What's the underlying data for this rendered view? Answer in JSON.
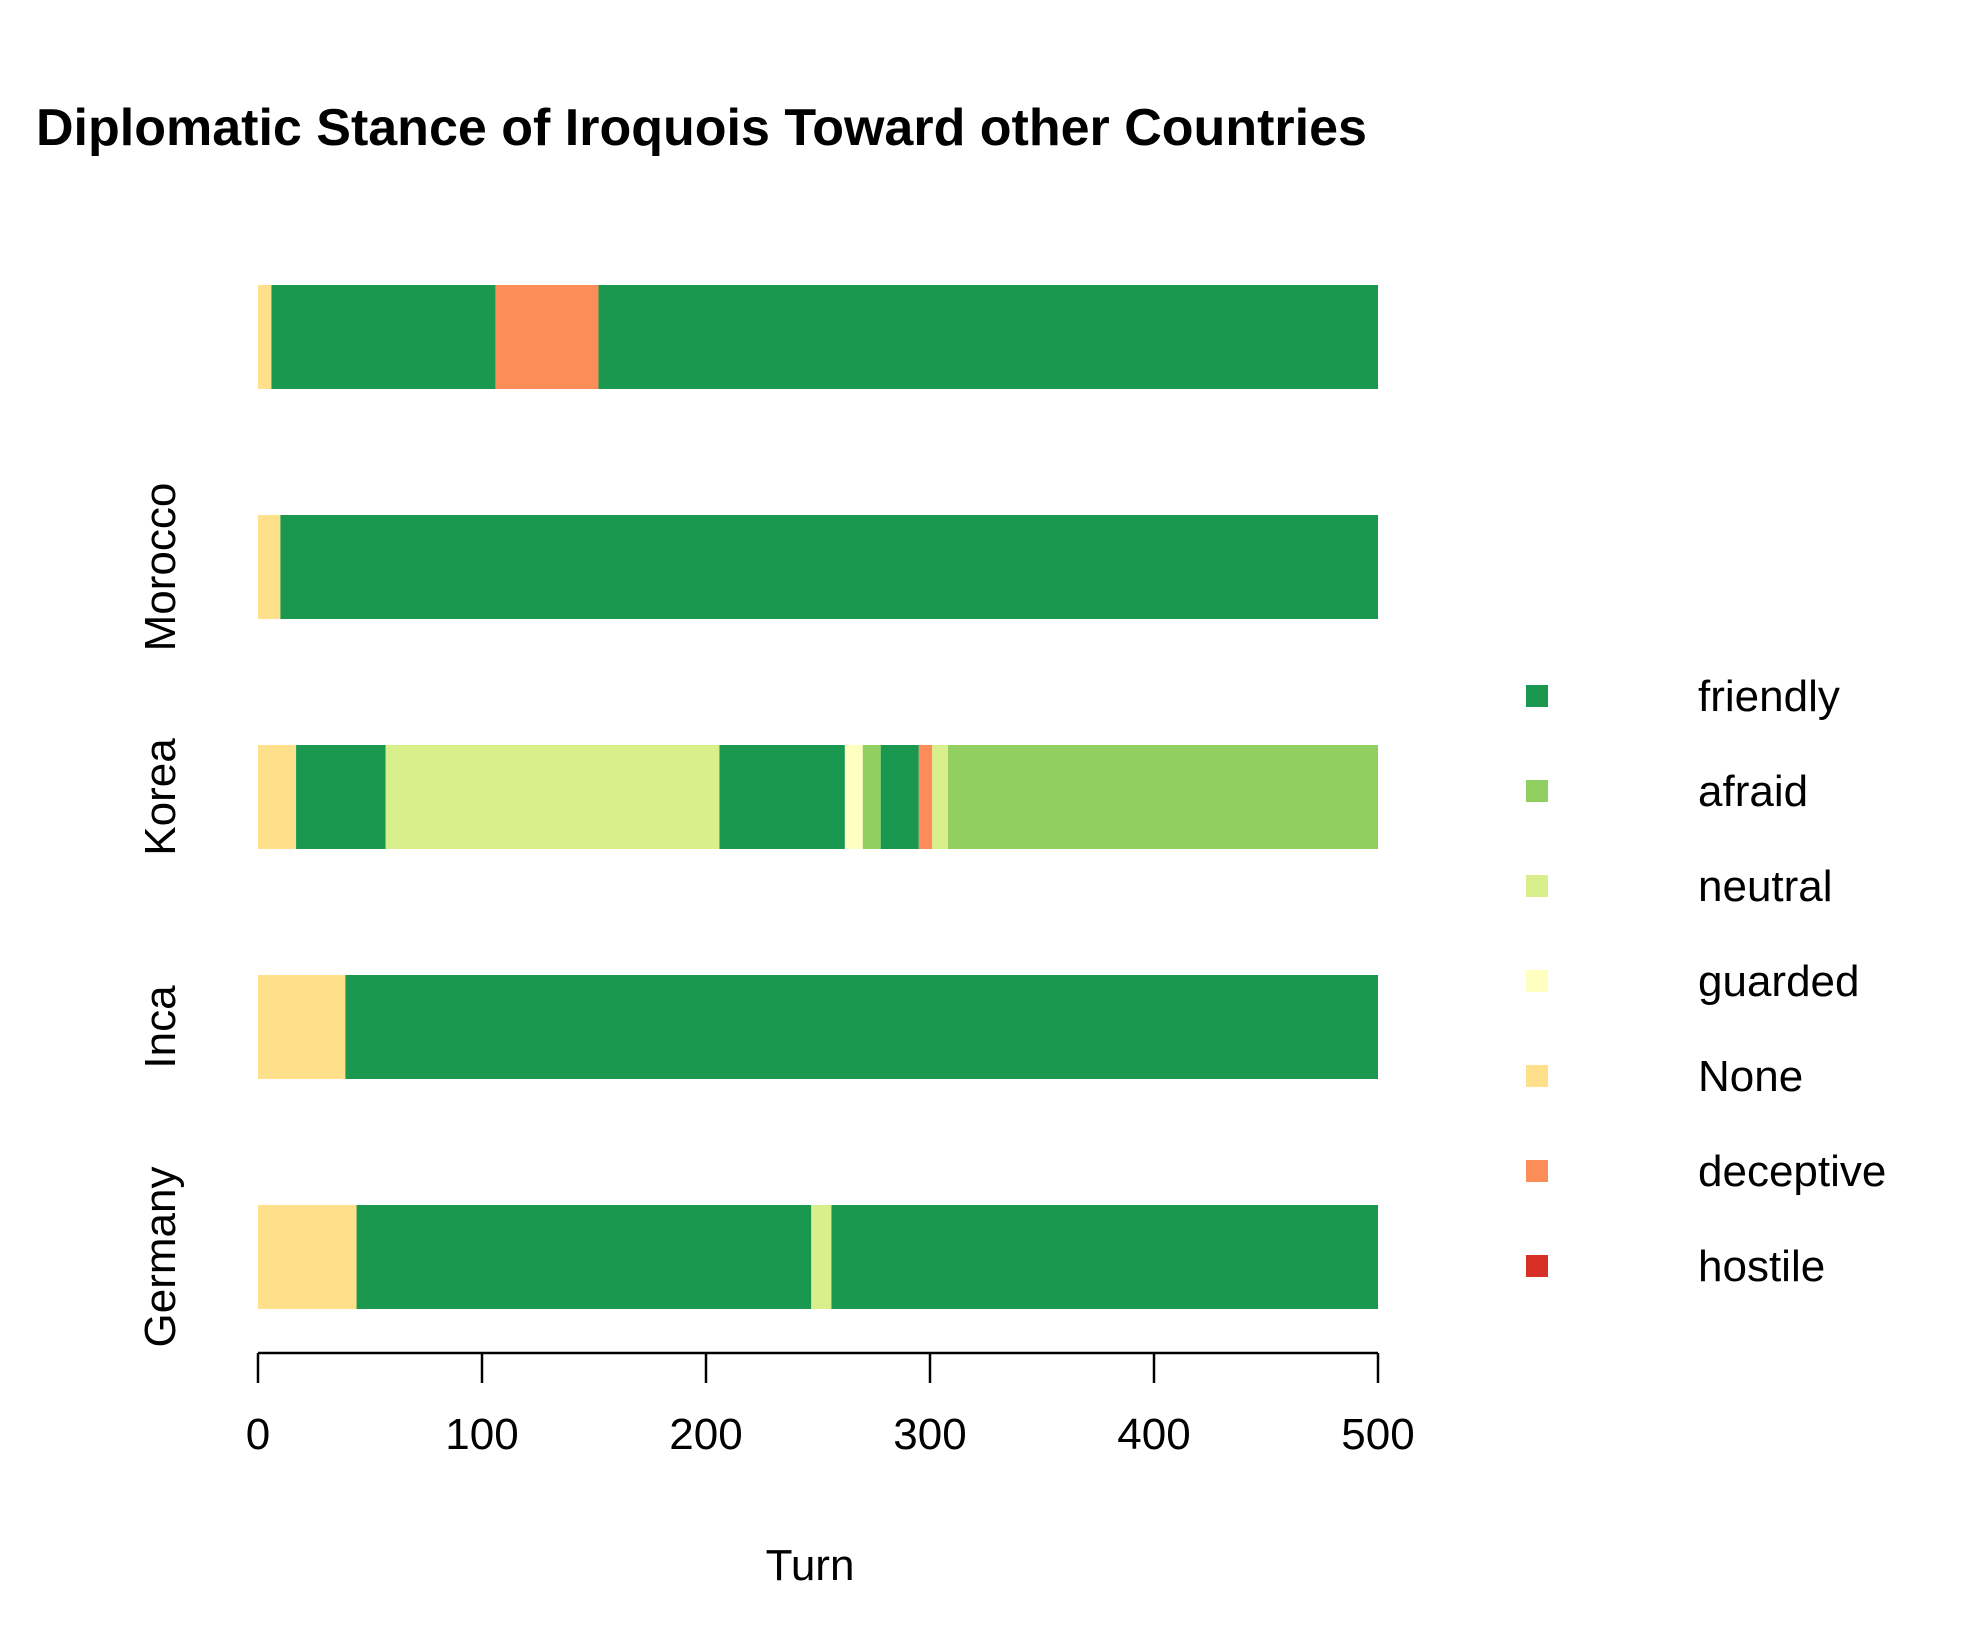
{
  "chart_data": {
    "type": "bar",
    "orientation": "horizontal",
    "stacked": true,
    "title": "Diplomatic Stance of Iroquois Toward other Countries",
    "xlabel": "Turn",
    "ylabel": "",
    "xlim": [
      0,
      500
    ],
    "x_ticks": [
      "0",
      "100",
      "200",
      "300",
      "400",
      "500"
    ],
    "grid": false,
    "legend_position": "right",
    "categories": [
      "Germany",
      "Inca",
      "Korea",
      "Morocco",
      ""
    ],
    "stance_colors": {
      "friendly": "#1a9850",
      "afraid": "#91cf60",
      "neutral": "#d9ef8b",
      "guarded": "#ffffbf",
      "None": "#fee08b",
      "deceptive": "#fc8d59",
      "hostile": "#d73027"
    },
    "legend": [
      "friendly",
      "afraid",
      "neutral",
      "guarded",
      "None",
      "deceptive",
      "hostile"
    ],
    "bars": [
      {
        "category": "Germany",
        "segments": [
          {
            "stance": "None",
            "start": 0,
            "end": 44
          },
          {
            "stance": "friendly",
            "start": 44,
            "end": 247
          },
          {
            "stance": "neutral",
            "start": 247,
            "end": 256
          },
          {
            "stance": "friendly",
            "start": 256,
            "end": 500
          }
        ]
      },
      {
        "category": "Inca",
        "segments": [
          {
            "stance": "None",
            "start": 0,
            "end": 39
          },
          {
            "stance": "friendly",
            "start": 39,
            "end": 500
          }
        ]
      },
      {
        "category": "Korea",
        "segments": [
          {
            "stance": "None",
            "start": 0,
            "end": 17
          },
          {
            "stance": "friendly",
            "start": 17,
            "end": 57
          },
          {
            "stance": "neutral",
            "start": 57,
            "end": 206
          },
          {
            "stance": "friendly",
            "start": 206,
            "end": 262
          },
          {
            "stance": "guarded",
            "start": 262,
            "end": 270
          },
          {
            "stance": "afraid",
            "start": 270,
            "end": 278
          },
          {
            "stance": "friendly",
            "start": 278,
            "end": 295
          },
          {
            "stance": "deceptive",
            "start": 295,
            "end": 301
          },
          {
            "stance": "neutral",
            "start": 301,
            "end": 308
          },
          {
            "stance": "afraid",
            "start": 308,
            "end": 500
          }
        ]
      },
      {
        "category": "Morocco",
        "segments": [
          {
            "stance": "None",
            "start": 0,
            "end": 10
          },
          {
            "stance": "friendly",
            "start": 10,
            "end": 500
          }
        ]
      },
      {
        "category": "",
        "segments": [
          {
            "stance": "None",
            "start": 0,
            "end": 6
          },
          {
            "stance": "friendly",
            "start": 6,
            "end": 106
          },
          {
            "stance": "deceptive",
            "start": 106,
            "end": 152
          },
          {
            "stance": "friendly",
            "start": 152,
            "end": 500
          }
        ]
      }
    ]
  }
}
